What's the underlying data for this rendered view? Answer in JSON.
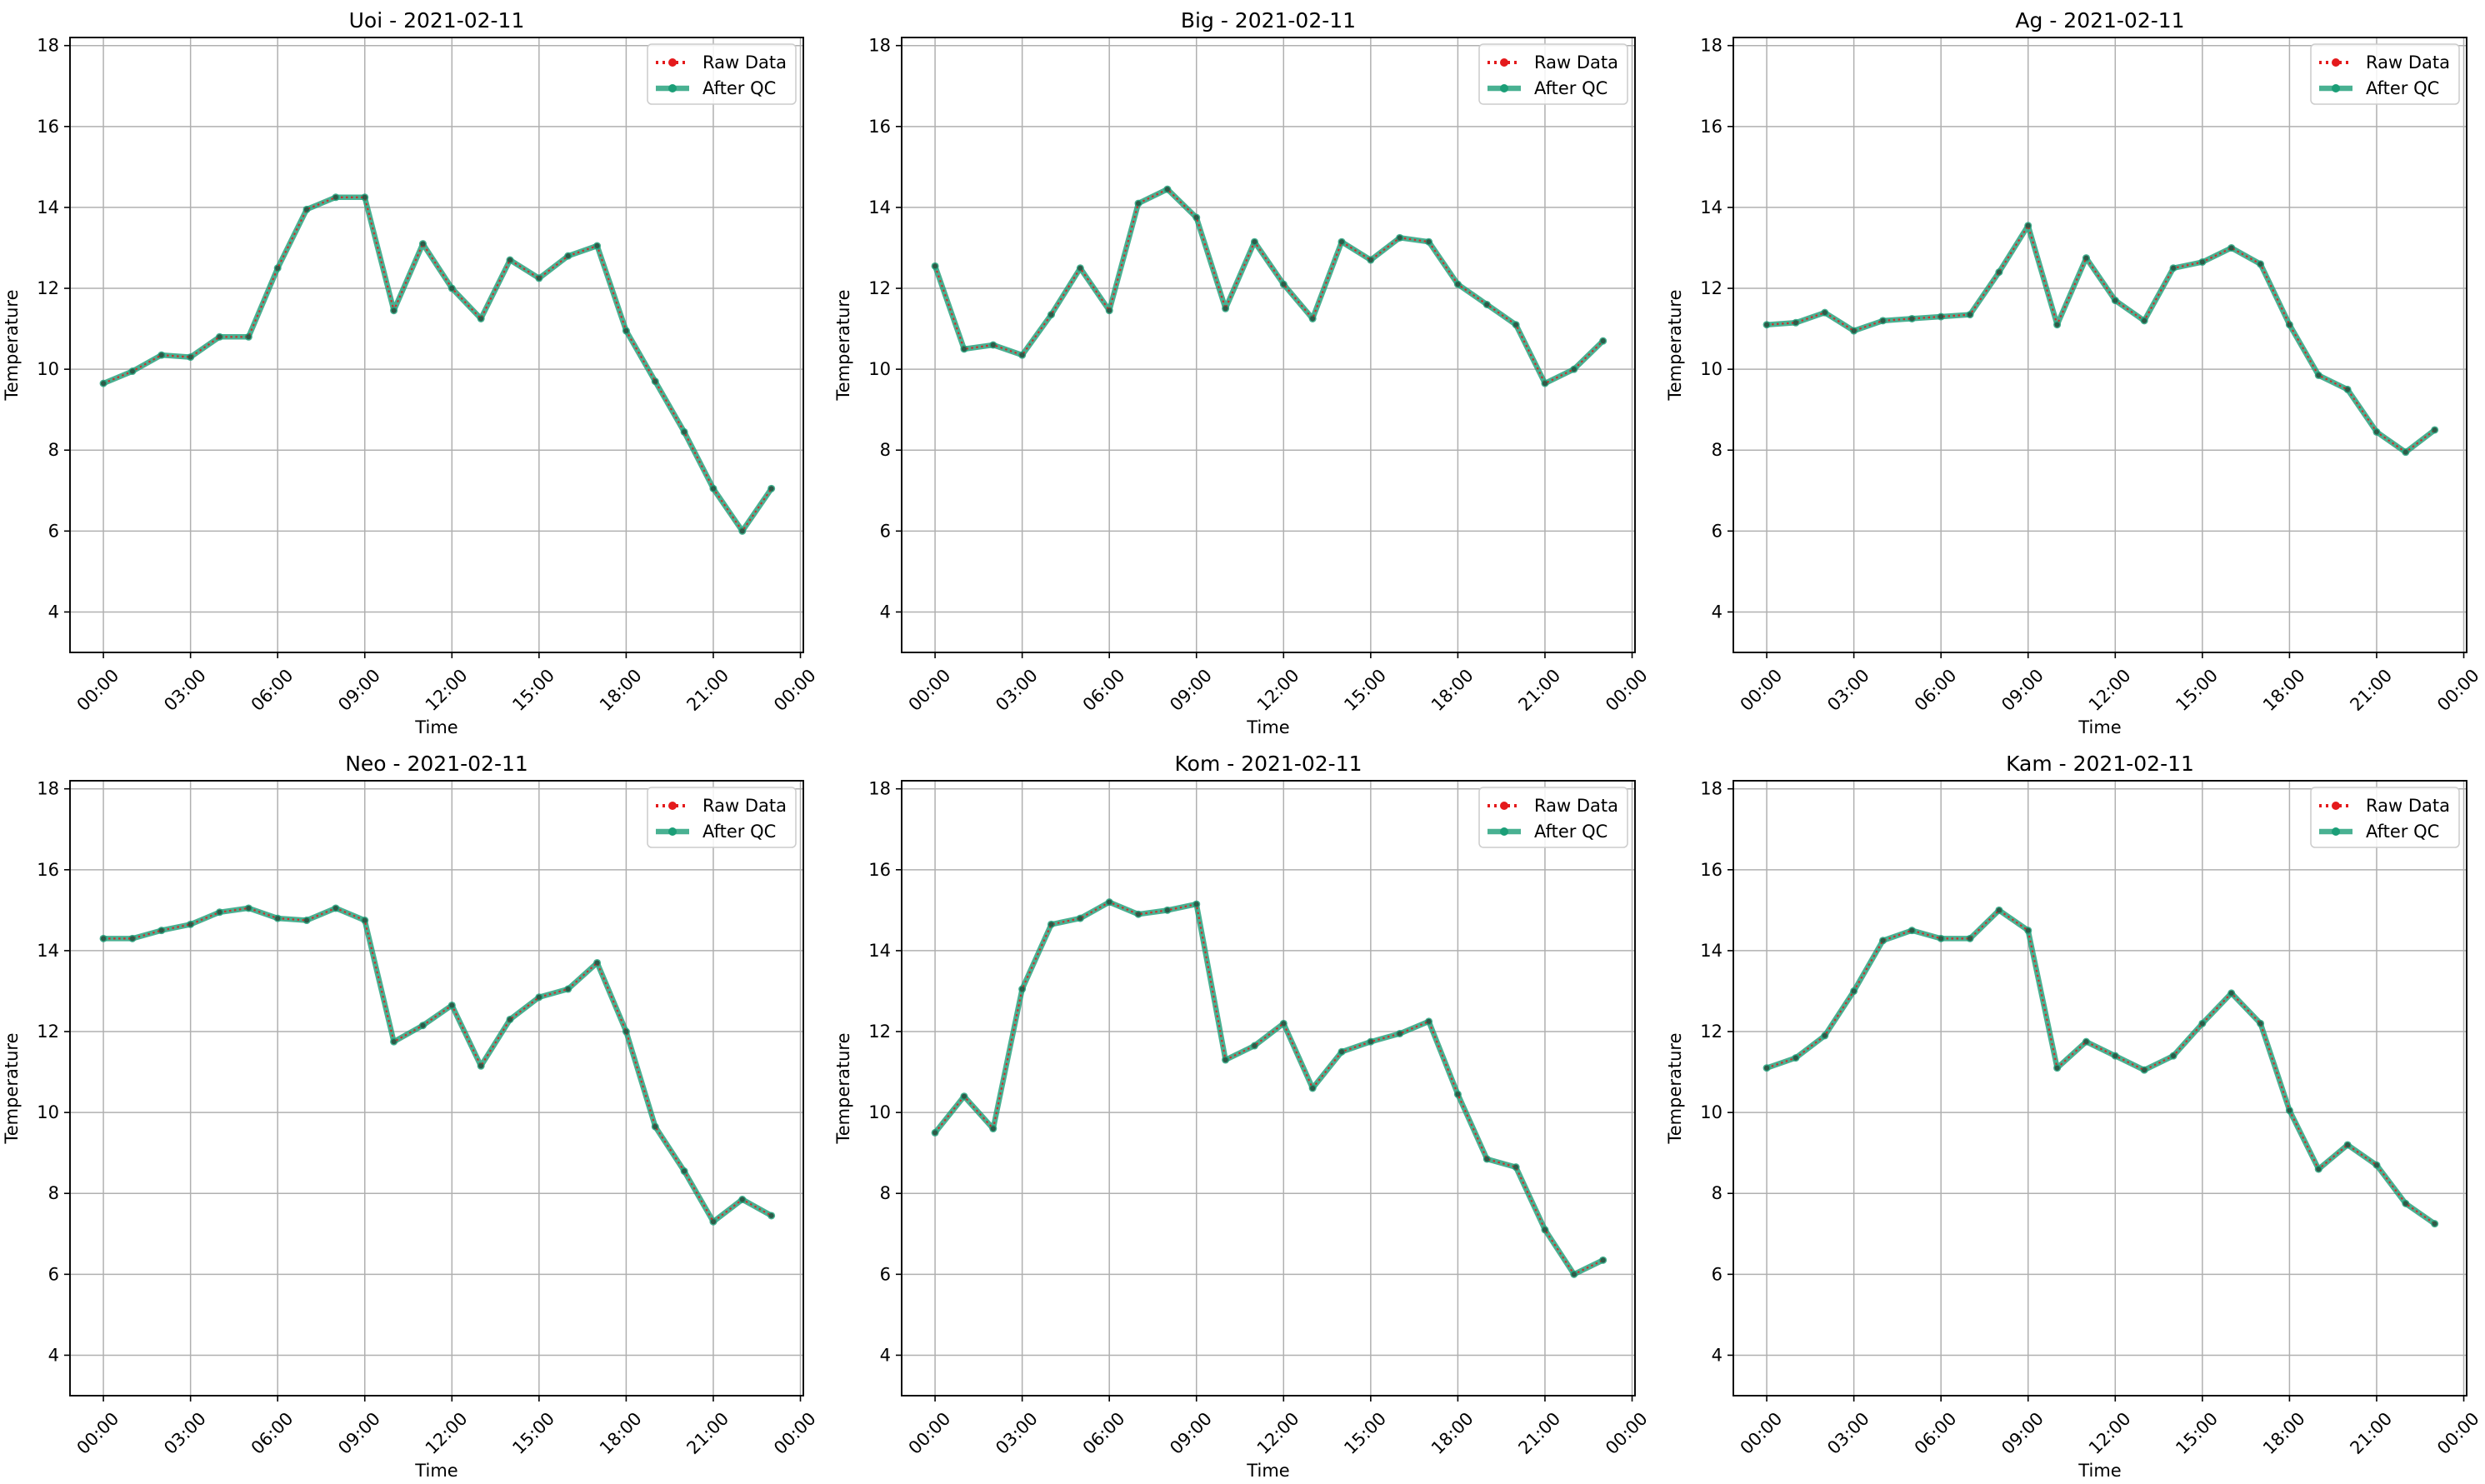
{
  "chart_data": [
    {
      "type": "line",
      "title": "Uoi - 2021-02-11",
      "xlabel": "Time",
      "ylabel": "Temperature",
      "xticks": [
        "00:00",
        "03:00",
        "06:00",
        "09:00",
        "12:00",
        "15:00",
        "18:00",
        "21:00",
        "00:00"
      ],
      "yticks": [
        4,
        6,
        8,
        10,
        12,
        14,
        16,
        18
      ],
      "ylim": [
        3.0,
        18.2
      ],
      "grid": true,
      "legend": "top-right",
      "x_hours": [
        0,
        1,
        2,
        3,
        4,
        5,
        6,
        7,
        8,
        9,
        10,
        11,
        12,
        13,
        14,
        15,
        16,
        17,
        18,
        19,
        20,
        21,
        22,
        23
      ],
      "series": [
        {
          "name": "Raw Data",
          "color": "#e41a1c",
          "style": "dotted",
          "values": [
            9.65,
            9.95,
            10.35,
            10.3,
            10.8,
            10.8,
            12.5,
            13.95,
            14.25,
            14.25,
            11.45,
            13.1,
            12.0,
            11.25,
            12.7,
            12.25,
            12.8,
            13.05,
            10.95,
            9.7,
            8.45,
            7.05,
            6.0,
            7.05
          ]
        },
        {
          "name": "After QC",
          "color": "#1b9e77",
          "style": "solid",
          "values": [
            9.65,
            9.95,
            10.35,
            10.3,
            10.8,
            10.8,
            12.5,
            13.95,
            14.25,
            14.25,
            11.45,
            13.1,
            12.0,
            11.25,
            12.7,
            12.25,
            12.8,
            13.05,
            10.95,
            9.7,
            8.45,
            7.05,
            6.0,
            7.05
          ]
        }
      ]
    },
    {
      "type": "line",
      "title": "Big - 2021-02-11",
      "xlabel": "Time",
      "ylabel": "Temperature",
      "xticks": [
        "00:00",
        "03:00",
        "06:00",
        "09:00",
        "12:00",
        "15:00",
        "18:00",
        "21:00",
        "00:00"
      ],
      "yticks": [
        4,
        6,
        8,
        10,
        12,
        14,
        16,
        18
      ],
      "ylim": [
        3.0,
        18.2
      ],
      "grid": true,
      "legend": "top-right",
      "x_hours": [
        0,
        1,
        2,
        3,
        4,
        5,
        6,
        7,
        8,
        9,
        10,
        11,
        12,
        13,
        14,
        15,
        16,
        17,
        18,
        19,
        20,
        21,
        22,
        23
      ],
      "series": [
        {
          "name": "Raw Data",
          "color": "#e41a1c",
          "style": "dotted",
          "values": [
            12.55,
            10.5,
            10.6,
            10.35,
            11.35,
            12.5,
            11.45,
            14.1,
            14.45,
            13.75,
            11.5,
            13.15,
            12.1,
            11.25,
            13.15,
            12.7,
            13.25,
            13.15,
            12.1,
            11.6,
            11.1,
            9.65,
            10.0,
            10.7
          ]
        },
        {
          "name": "After QC",
          "color": "#1b9e77",
          "style": "solid",
          "values": [
            12.55,
            10.5,
            10.6,
            10.35,
            11.35,
            12.5,
            11.45,
            14.1,
            14.45,
            13.75,
            11.5,
            13.15,
            12.1,
            11.25,
            13.15,
            12.7,
            13.25,
            13.15,
            12.1,
            11.6,
            11.1,
            9.65,
            10.0,
            10.7
          ]
        }
      ]
    },
    {
      "type": "line",
      "title": "Ag - 2021-02-11",
      "xlabel": "Time",
      "ylabel": "Temperature",
      "xticks": [
        "00:00",
        "03:00",
        "06:00",
        "09:00",
        "12:00",
        "15:00",
        "18:00",
        "21:00",
        "00:00"
      ],
      "yticks": [
        4,
        6,
        8,
        10,
        12,
        14,
        16,
        18
      ],
      "ylim": [
        3.0,
        18.2
      ],
      "grid": true,
      "legend": "top-right",
      "x_hours": [
        0,
        1,
        2,
        3,
        4,
        5,
        6,
        7,
        8,
        9,
        10,
        11,
        12,
        13,
        14,
        15,
        16,
        17,
        18,
        19,
        20,
        21,
        22,
        23
      ],
      "series": [
        {
          "name": "Raw Data",
          "color": "#e41a1c",
          "style": "dotted",
          "values": [
            11.1,
            11.15,
            11.4,
            10.95,
            11.2,
            11.25,
            11.3,
            11.35,
            12.4,
            13.55,
            11.1,
            12.75,
            11.7,
            11.2,
            12.5,
            12.65,
            13.0,
            12.6,
            11.1,
            9.85,
            9.5,
            8.45,
            7.95,
            8.5
          ]
        },
        {
          "name": "After QC",
          "color": "#1b9e77",
          "style": "solid",
          "values": [
            11.1,
            11.15,
            11.4,
            10.95,
            11.2,
            11.25,
            11.3,
            11.35,
            12.4,
            13.55,
            11.1,
            12.75,
            11.7,
            11.2,
            12.5,
            12.65,
            13.0,
            12.6,
            11.1,
            9.85,
            9.5,
            8.45,
            7.95,
            8.5
          ]
        }
      ]
    },
    {
      "type": "line",
      "title": "Neo - 2021-02-11",
      "xlabel": "Time",
      "ylabel": "Temperature",
      "xticks": [
        "00:00",
        "03:00",
        "06:00",
        "09:00",
        "12:00",
        "15:00",
        "18:00",
        "21:00",
        "00:00"
      ],
      "yticks": [
        4,
        6,
        8,
        10,
        12,
        14,
        16,
        18
      ],
      "ylim": [
        3.0,
        18.2
      ],
      "grid": true,
      "legend": "top-right",
      "x_hours": [
        0,
        1,
        2,
        3,
        4,
        5,
        6,
        7,
        8,
        9,
        10,
        11,
        12,
        13,
        14,
        15,
        16,
        17,
        18,
        19,
        20,
        21,
        22,
        23
      ],
      "series": [
        {
          "name": "Raw Data",
          "color": "#e41a1c",
          "style": "dotted",
          "values": [
            14.3,
            14.3,
            14.5,
            14.65,
            14.95,
            15.05,
            14.8,
            14.75,
            15.05,
            14.75,
            11.75,
            12.15,
            12.65,
            11.15,
            12.3,
            12.85,
            13.05,
            13.7,
            12.0,
            9.65,
            8.55,
            7.3,
            7.85,
            7.45
          ]
        },
        {
          "name": "After QC",
          "color": "#1b9e77",
          "style": "solid",
          "values": [
            14.3,
            14.3,
            14.5,
            14.65,
            14.95,
            15.05,
            14.8,
            14.75,
            15.05,
            14.75,
            11.75,
            12.15,
            12.65,
            11.15,
            12.3,
            12.85,
            13.05,
            13.7,
            12.0,
            9.65,
            8.55,
            7.3,
            7.85,
            7.45
          ]
        }
      ]
    },
    {
      "type": "line",
      "title": "Kom - 2021-02-11",
      "xlabel": "Time",
      "ylabel": "Temperature",
      "xticks": [
        "00:00",
        "03:00",
        "06:00",
        "09:00",
        "12:00",
        "15:00",
        "18:00",
        "21:00",
        "00:00"
      ],
      "yticks": [
        4,
        6,
        8,
        10,
        12,
        14,
        16,
        18
      ],
      "ylim": [
        3.0,
        18.2
      ],
      "grid": true,
      "legend": "top-right",
      "x_hours": [
        0,
        1,
        2,
        3,
        4,
        5,
        6,
        7,
        8,
        9,
        10,
        11,
        12,
        13,
        14,
        15,
        16,
        17,
        18,
        19,
        20,
        21,
        22,
        23
      ],
      "series": [
        {
          "name": "Raw Data",
          "color": "#e41a1c",
          "style": "dotted",
          "values": [
            9.5,
            10.4,
            9.6,
            13.05,
            14.65,
            14.8,
            15.2,
            14.9,
            15.0,
            15.15,
            11.3,
            11.65,
            12.2,
            10.6,
            11.5,
            11.75,
            11.95,
            12.25,
            10.45,
            8.85,
            8.65,
            7.1,
            6.0,
            6.35
          ]
        },
        {
          "name": "After QC",
          "color": "#1b9e77",
          "style": "solid",
          "values": [
            9.5,
            10.4,
            9.6,
            13.05,
            14.65,
            14.8,
            15.2,
            14.9,
            15.0,
            15.15,
            11.3,
            11.65,
            12.2,
            10.6,
            11.5,
            11.75,
            11.95,
            12.25,
            10.45,
            8.85,
            8.65,
            7.1,
            6.0,
            6.35
          ]
        }
      ]
    },
    {
      "type": "line",
      "title": "Kam - 2021-02-11",
      "xlabel": "Time",
      "ylabel": "Temperature",
      "xticks": [
        "00:00",
        "03:00",
        "06:00",
        "09:00",
        "12:00",
        "15:00",
        "18:00",
        "21:00",
        "00:00"
      ],
      "yticks": [
        4,
        6,
        8,
        10,
        12,
        14,
        16,
        18
      ],
      "ylim": [
        3.0,
        18.2
      ],
      "grid": true,
      "legend": "top-right",
      "x_hours": [
        0,
        1,
        2,
        3,
        4,
        5,
        6,
        7,
        8,
        9,
        10,
        11,
        12,
        13,
        14,
        15,
        16,
        17,
        18,
        19,
        20,
        21,
        22,
        23
      ],
      "series": [
        {
          "name": "Raw Data",
          "color": "#e41a1c",
          "style": "dotted",
          "values": [
            11.1,
            11.35,
            11.9,
            13.0,
            14.25,
            14.5,
            14.3,
            14.3,
            15.0,
            14.5,
            11.1,
            11.75,
            11.4,
            11.05,
            11.4,
            12.2,
            12.95,
            12.2,
            10.05,
            8.6,
            9.2,
            8.7,
            7.75,
            7.25
          ]
        },
        {
          "name": "After QC",
          "color": "#1b9e77",
          "style": "solid",
          "values": [
            11.1,
            11.35,
            11.9,
            13.0,
            14.25,
            14.5,
            14.3,
            14.3,
            15.0,
            14.5,
            11.1,
            11.75,
            11.4,
            11.05,
            11.4,
            12.2,
            12.95,
            12.2,
            10.05,
            8.6,
            9.2,
            8.7,
            7.75,
            7.25
          ]
        }
      ]
    }
  ]
}
